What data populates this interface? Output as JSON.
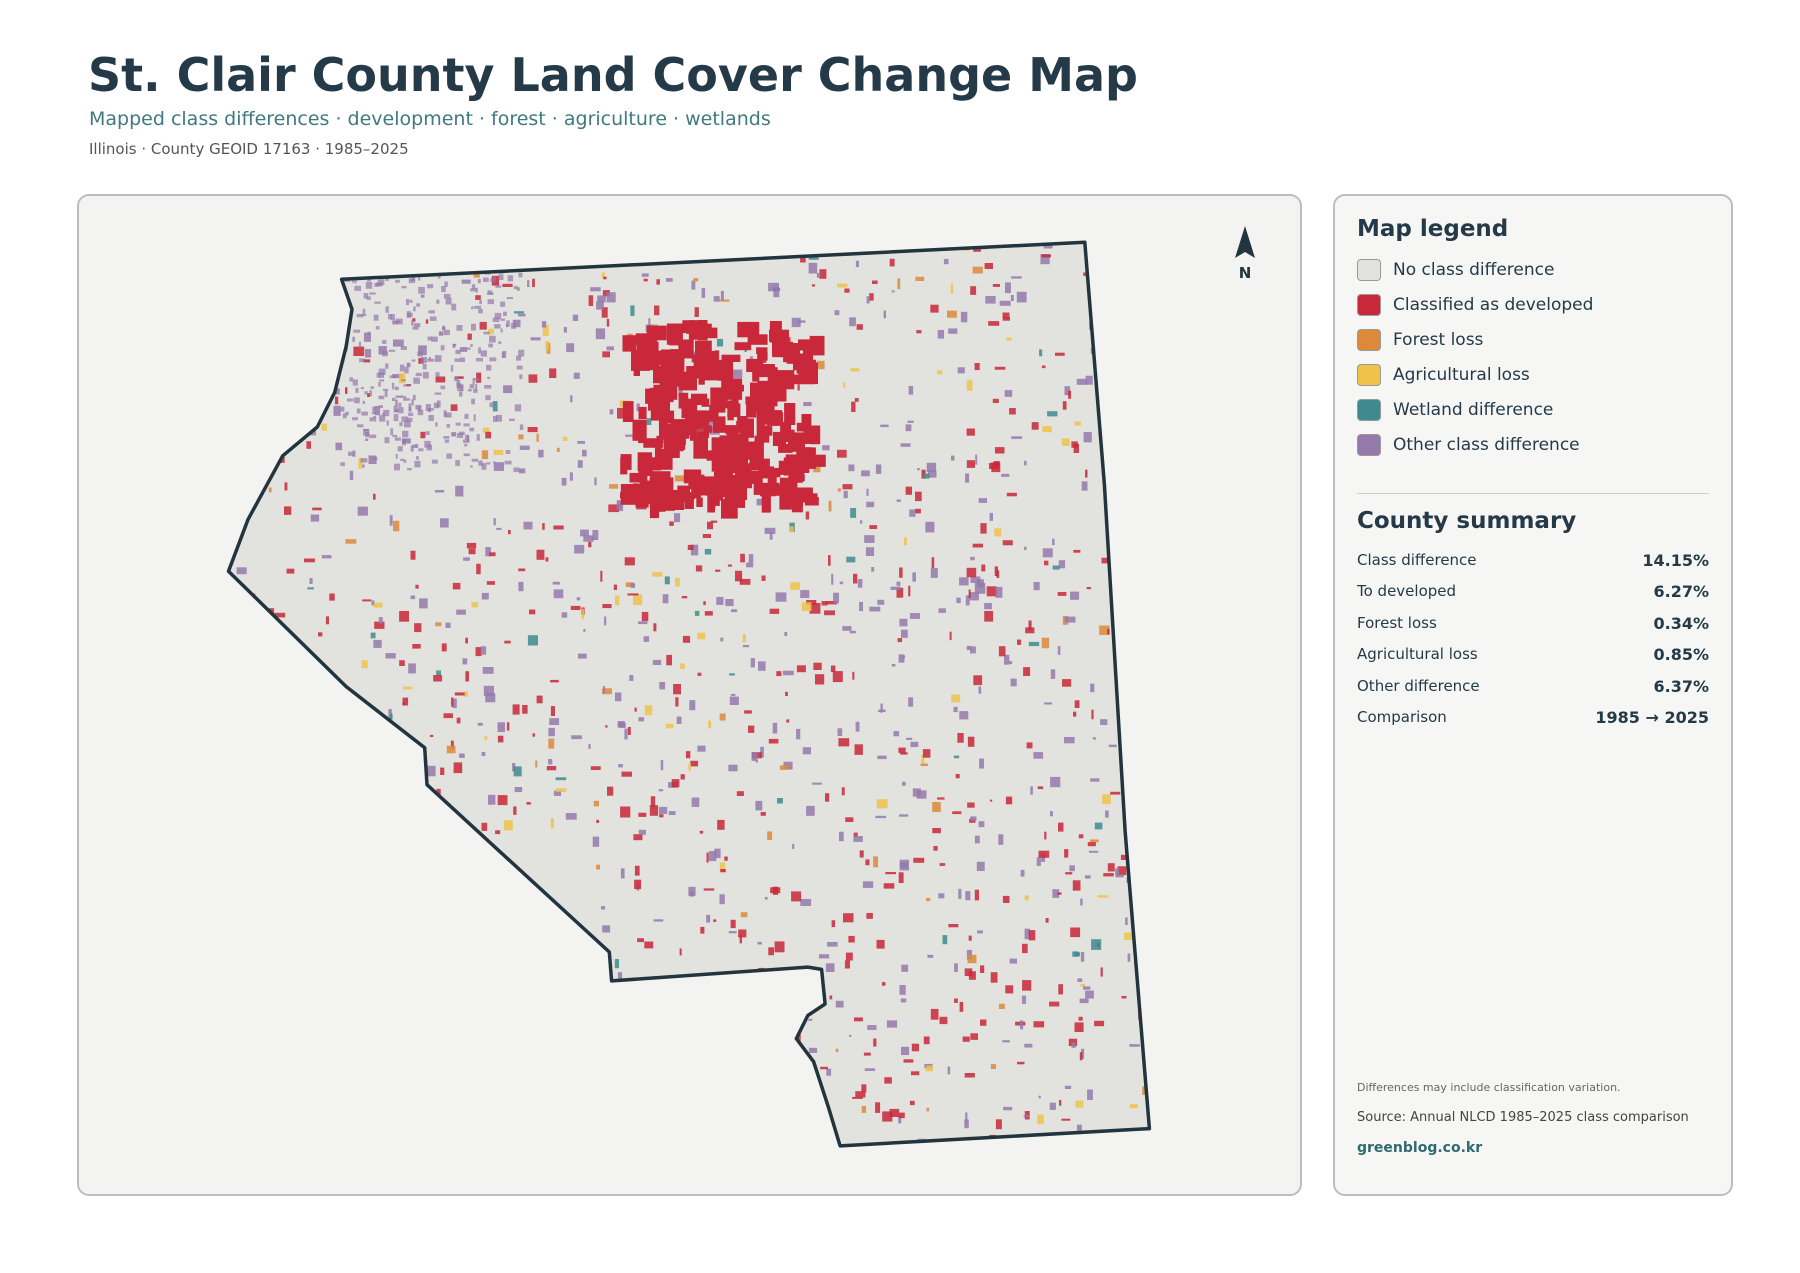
{
  "header": {
    "title": "St. Clair County Land Cover Change Map",
    "subtitle": "Mapped class differences · development · forest · agriculture · wetlands",
    "meta": "Illinois · County GEOID 17163 · 1985–2025"
  },
  "map": {
    "north_label": "N"
  },
  "legend": {
    "title": "Map legend",
    "items": [
      {
        "label": "No class difference",
        "color": "#e2e2de"
      },
      {
        "label": "Classified as developed",
        "color": "#c8283a"
      },
      {
        "label": "Forest loss",
        "color": "#dc8a3a"
      },
      {
        "label": "Agricultural loss",
        "color": "#efc24a"
      },
      {
        "label": "Wetland difference",
        "color": "#3f8a8e"
      },
      {
        "label": "Other class difference",
        "color": "#9479ab"
      }
    ]
  },
  "summary": {
    "title": "County summary",
    "rows": [
      [
        "Class difference",
        "14.15%"
      ],
      [
        "To developed",
        "6.27%"
      ],
      [
        "Forest loss",
        "0.34%"
      ],
      [
        "Agricultural loss",
        "0.85%"
      ],
      [
        "Other difference",
        "6.37%"
      ],
      [
        "Comparison",
        "1985 → 2025"
      ]
    ]
  },
  "notes": {
    "caveat": "Differences may include classification variation.",
    "source": "Source: Annual NLCD 1985–2025 class comparison",
    "site": "greenblog.co.kr"
  }
}
